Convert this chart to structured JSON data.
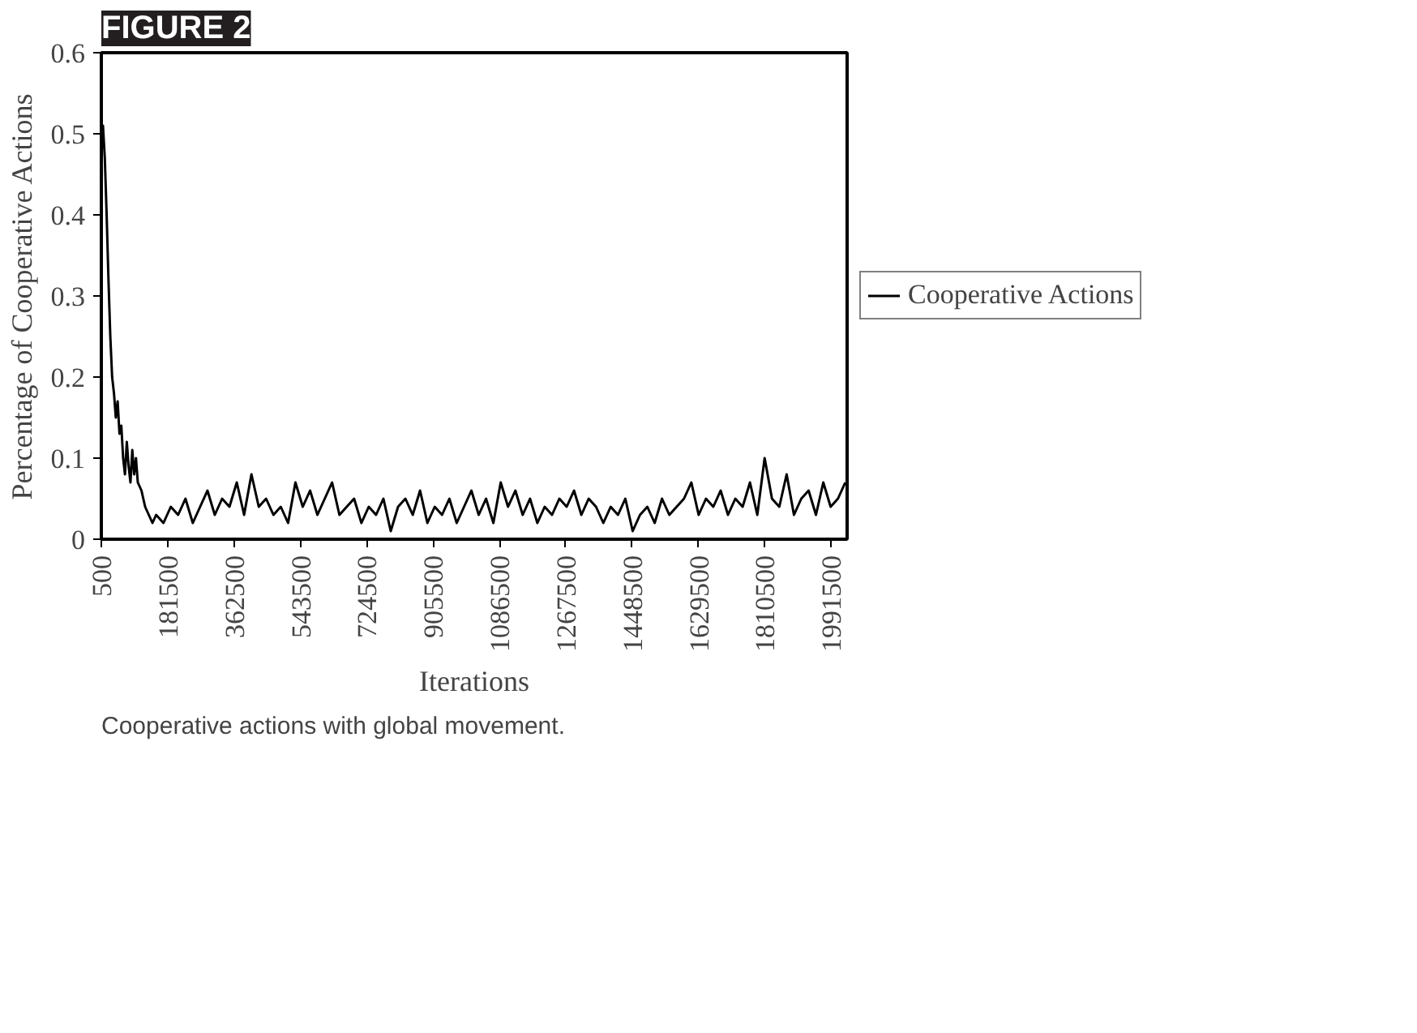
{
  "chart_data": {
    "type": "line",
    "title": "FIGURE 2",
    "xlabel": "Iterations",
    "ylabel": "Percentage of Cooperative Actions",
    "annotations": [
      "Cooperative actions with global movement."
    ],
    "xlim": [
      500,
      2035000
    ],
    "xticks": [
      500,
      181500,
      362500,
      543500,
      724500,
      905500,
      1086500,
      1267500,
      1448500,
      1629500,
      1810500,
      1991500
    ],
    "ylim": [
      0,
      0.6
    ],
    "yticks": [
      0,
      0.1,
      0.2,
      0.3,
      0.4,
      0.5,
      0.6
    ],
    "grid": false,
    "legend": "right",
    "marker": "none",
    "line_style": "solid",
    "x": [
      500,
      5000,
      10000,
      15000,
      20000,
      25000,
      30000,
      35000,
      40000,
      45000,
      50000,
      55000,
      60000,
      65000,
      70000,
      75000,
      80000,
      85000,
      90000,
      95000,
      100000,
      110000,
      120000,
      130000,
      140000,
      150000,
      170000,
      190000,
      210000,
      230000,
      250000,
      270000,
      290000,
      310000,
      330000,
      350000,
      370000,
      390000,
      410000,
      430000,
      450000,
      470000,
      490000,
      510000,
      530000,
      550000,
      570000,
      590000,
      610000,
      630000,
      650000,
      670000,
      690000,
      710000,
      730000,
      750000,
      770000,
      790000,
      810000,
      830000,
      850000,
      870000,
      890000,
      910000,
      930000,
      950000,
      970000,
      990000,
      1010000,
      1030000,
      1050000,
      1070000,
      1090000,
      1110000,
      1130000,
      1150000,
      1170000,
      1190000,
      1210000,
      1230000,
      1250000,
      1270000,
      1290000,
      1310000,
      1330000,
      1350000,
      1370000,
      1390000,
      1410000,
      1430000,
      1450000,
      1470000,
      1490000,
      1510000,
      1530000,
      1550000,
      1570000,
      1590000,
      1610000,
      1630000,
      1650000,
      1670000,
      1690000,
      1710000,
      1730000,
      1750000,
      1770000,
      1790000,
      1810000,
      1830000,
      1850000,
      1870000,
      1890000,
      1910000,
      1930000,
      1950000,
      1970000,
      1990000,
      2010000,
      2030000
    ],
    "series": [
      {
        "name": "Cooperative Actions",
        "color": "#000000",
        "values": [
          0.5,
          0.51,
          0.47,
          0.4,
          0.32,
          0.25,
          0.2,
          0.18,
          0.15,
          0.17,
          0.13,
          0.14,
          0.1,
          0.08,
          0.12,
          0.09,
          0.07,
          0.11,
          0.08,
          0.1,
          0.07,
          0.06,
          0.04,
          0.03,
          0.02,
          0.03,
          0.02,
          0.04,
          0.03,
          0.05,
          0.02,
          0.04,
          0.06,
          0.03,
          0.05,
          0.04,
          0.07,
          0.03,
          0.08,
          0.04,
          0.05,
          0.03,
          0.04,
          0.02,
          0.07,
          0.04,
          0.06,
          0.03,
          0.05,
          0.07,
          0.03,
          0.04,
          0.05,
          0.02,
          0.04,
          0.03,
          0.05,
          0.01,
          0.04,
          0.05,
          0.03,
          0.06,
          0.02,
          0.04,
          0.03,
          0.05,
          0.02,
          0.04,
          0.06,
          0.03,
          0.05,
          0.02,
          0.07,
          0.04,
          0.06,
          0.03,
          0.05,
          0.02,
          0.04,
          0.03,
          0.05,
          0.04,
          0.06,
          0.03,
          0.05,
          0.04,
          0.02,
          0.04,
          0.03,
          0.05,
          0.01,
          0.03,
          0.04,
          0.02,
          0.05,
          0.03,
          0.04,
          0.05,
          0.07,
          0.03,
          0.05,
          0.04,
          0.06,
          0.03,
          0.05,
          0.04,
          0.07,
          0.03,
          0.1,
          0.05,
          0.04,
          0.08,
          0.03,
          0.05,
          0.06,
          0.03,
          0.07,
          0.04,
          0.05,
          0.07
        ]
      }
    ]
  }
}
